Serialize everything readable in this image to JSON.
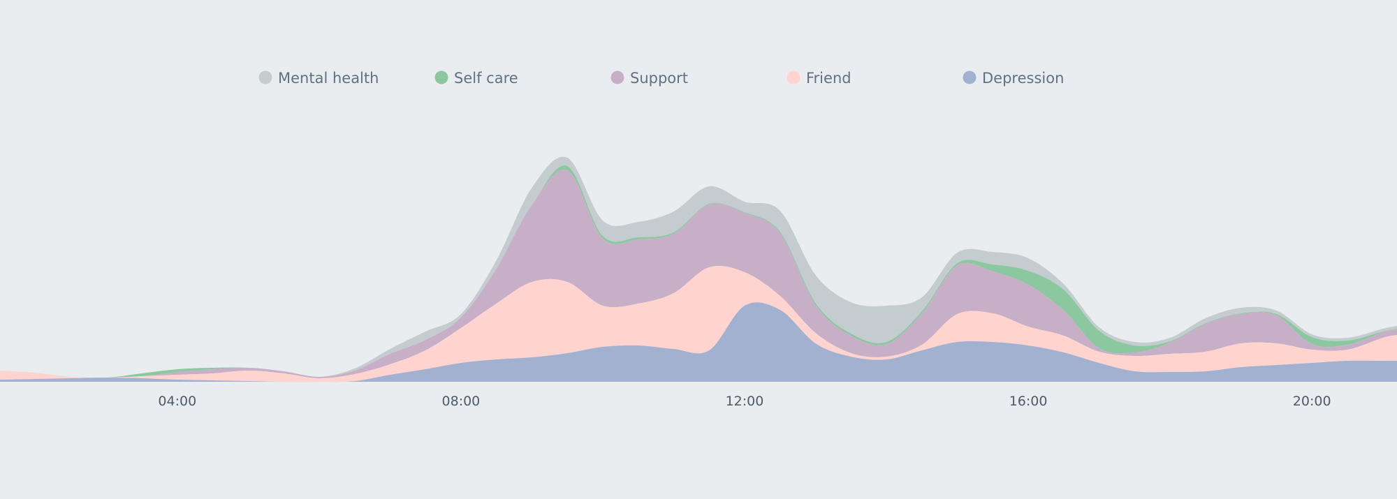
{
  "chart_data": {
    "type": "area",
    "stacked": true,
    "smooth": true,
    "grid": false,
    "legend_position": "top",
    "x_ticks": [
      "04:00",
      "08:00",
      "12:00",
      "16:00",
      "20:00"
    ],
    "x_unit": "hour",
    "x_range": [
      1.5,
      21.2
    ],
    "y_range": [
      0,
      330
    ],
    "x": [
      1.5,
      2,
      2.5,
      3,
      3.5,
      4,
      4.5,
      5,
      5.5,
      6,
      6.5,
      7,
      7.5,
      8,
      8.5,
      9,
      9.5,
      10,
      10.5,
      11,
      11.5,
      12,
      12.5,
      13,
      13.5,
      14,
      14.5,
      15,
      15.5,
      16,
      16.5,
      17,
      17.5,
      18,
      18.5,
      19,
      19.5,
      20,
      20.5,
      21,
      21.2
    ],
    "series": [
      {
        "name": "Depression",
        "color": "#a3b1d1",
        "values": [
          3,
          4,
          5,
          6,
          5,
          3,
          2,
          1,
          0,
          0,
          1,
          10,
          18,
          27,
          32,
          35,
          41,
          50,
          52,
          47,
          45,
          109,
          103,
          55,
          36,
          32,
          45,
          57,
          57,
          52,
          42,
          27,
          15,
          14,
          15,
          21,
          24,
          27,
          30,
          30,
          30
        ]
      },
      {
        "name": "Friend",
        "color": "#ffd4cf",
        "values": [
          13,
          9,
          2,
          0,
          3,
          7,
          10,
          15,
          12,
          5,
          10,
          15,
          27,
          50,
          80,
          108,
          102,
          59,
          60,
          80,
          119,
          48,
          20,
          15,
          5,
          4,
          8,
          40,
          41,
          27,
          24,
          16,
          22,
          26,
          28,
          34,
          31,
          19,
          16,
          33,
          37
        ]
      },
      {
        "name": "Support",
        "color": "#c8afc8",
        "values": [
          0,
          0,
          0,
          0,
          0,
          4,
          6,
          4,
          3,
          2,
          5,
          15,
          15,
          15,
          50,
          110,
          160,
          96,
          92,
          85,
          90,
          85,
          90,
          40,
          25,
          18,
          45,
          70,
          60,
          60,
          36,
          5,
          5,
          16,
          40,
          42,
          40,
          8,
          7,
          8,
          8
        ]
      },
      {
        "name": "Self care",
        "color": "#8bc8a0",
        "values": [
          0,
          0,
          0,
          0,
          4,
          4,
          2,
          0,
          0,
          0,
          0,
          0,
          0,
          0,
          0,
          0,
          6,
          4,
          3,
          2,
          1,
          1,
          2,
          3,
          3,
          3,
          3,
          3,
          10,
          20,
          30,
          25,
          10,
          2,
          1,
          1,
          2,
          10,
          6,
          1,
          1
        ]
      },
      {
        "name": "Mental health",
        "color": "#c5ccd0",
        "values": [
          0,
          0,
          0,
          0,
          0,
          0,
          0,
          0,
          0,
          0,
          3,
          7,
          12,
          5,
          12,
          25,
          12,
          22,
          22,
          30,
          25,
          15,
          30,
          40,
          45,
          52,
          20,
          15,
          18,
          18,
          8,
          5,
          5,
          5,
          7,
          8,
          5,
          4,
          4,
          4,
          4
        ]
      }
    ]
  },
  "legend_order": [
    "Mental health",
    "Self care",
    "Support",
    "Friend",
    "Depression"
  ]
}
